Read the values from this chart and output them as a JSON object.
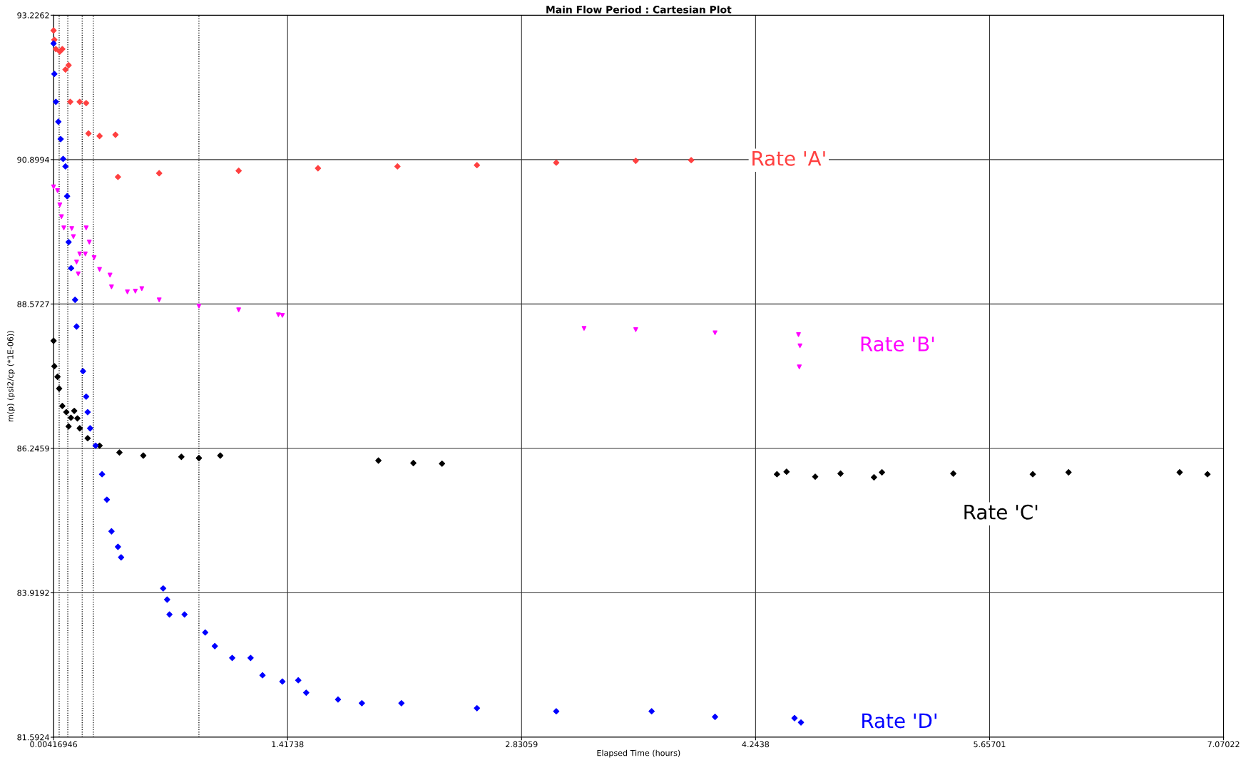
{
  "chart_data": {
    "type": "scatter",
    "title": "Main Flow Period : Cartesian Plot",
    "xlabel": "Elapsed Time (hours)",
    "ylabel": "m(p) (psi2/cp (*1E-06))",
    "xlim": [
      0.00416946,
      7.07022
    ],
    "xticks": [
      0.00416946,
      1.41738,
      2.83059,
      4.2438,
      5.65701,
      7.07022
    ],
    "ylim": [
      81.5924,
      93.2262
    ],
    "yticks": [
      81.5924,
      83.9192,
      86.2459,
      88.5727,
      90.8994,
      93.2262
    ],
    "grid": true,
    "legend": false,
    "ref_lines": [
      {
        "axis": "x",
        "value": 0.038,
        "color": "#000000",
        "line_style": "dotted"
      },
      {
        "axis": "x",
        "value": 0.09,
        "color": "#000000",
        "line_style": "dotted"
      },
      {
        "axis": "x",
        "value": 0.177,
        "color": "#000000",
        "line_style": "dotted"
      },
      {
        "axis": "x",
        "value": 0.244,
        "color": "#000000",
        "line_style": "dotted"
      },
      {
        "axis": "x",
        "value": 0.882,
        "color": "#000000",
        "line_style": "dotted"
      }
    ],
    "series": [
      {
        "name": "Rate 'A'",
        "color": "#ff4040",
        "marker": "diamond",
        "x": [
          0.0042,
          0.009,
          0.018,
          0.042,
          0.057,
          0.076,
          0.095,
          0.105,
          0.162,
          0.201,
          0.215,
          0.282,
          0.378,
          0.393,
          0.642,
          1.122,
          1.601,
          2.081,
          2.561,
          3.04,
          3.52,
          3.855
        ],
        "values": [
          92.98,
          92.83,
          92.68,
          92.64,
          92.68,
          92.35,
          92.42,
          91.83,
          91.83,
          91.81,
          91.32,
          91.28,
          91.3,
          90.62,
          90.68,
          90.72,
          90.76,
          90.79,
          90.81,
          90.85,
          90.88,
          90.89
        ]
      },
      {
        "name": "Rate 'B'",
        "color": "#ff00ff",
        "marker": "triangle",
        "x": [
          0.0042,
          0.028,
          0.042,
          0.052,
          0.066,
          0.114,
          0.124,
          0.143,
          0.153,
          0.162,
          0.196,
          0.201,
          0.22,
          0.249,
          0.282,
          0.345,
          0.354,
          0.45,
          0.498,
          0.537,
          0.642,
          0.882,
          1.122,
          1.362,
          1.386,
          3.208,
          3.52,
          3.999,
          4.503,
          4.512,
          4.508
        ],
        "values": [
          90.46,
          90.4,
          90.17,
          89.98,
          89.8,
          89.79,
          89.66,
          89.25,
          89.06,
          89.38,
          89.38,
          89.8,
          89.57,
          89.32,
          89.13,
          89.04,
          88.85,
          88.77,
          88.78,
          88.82,
          88.64,
          88.54,
          88.48,
          88.4,
          88.39,
          88.18,
          88.16,
          88.11,
          88.08,
          87.9,
          87.56
        ]
      },
      {
        "name": "Rate 'C'",
        "color": "#000000",
        "marker": "diamond",
        "x": [
          0.0042,
          0.009,
          0.028,
          0.038,
          0.057,
          0.081,
          0.095,
          0.109,
          0.129,
          0.148,
          0.162,
          0.21,
          0.282,
          0.402,
          0.546,
          0.776,
          0.882,
          1.011,
          1.966,
          2.177,
          2.35,
          4.373,
          4.431,
          4.604,
          4.757,
          4.959,
          5.007,
          5.438,
          5.918,
          6.134,
          6.805,
          6.973
        ],
        "values": [
          87.98,
          87.57,
          87.4,
          87.21,
          86.93,
          86.83,
          86.6,
          86.74,
          86.85,
          86.73,
          86.57,
          86.41,
          86.29,
          86.18,
          86.13,
          86.11,
          86.09,
          86.13,
          86.05,
          86.01,
          86.0,
          85.83,
          85.87,
          85.79,
          85.84,
          85.78,
          85.86,
          85.84,
          85.83,
          85.86,
          85.86,
          85.83
        ]
      },
      {
        "name": "Rate 'D'",
        "color": "#0000ff",
        "marker": "diamond",
        "x": [
          0.0042,
          0.009,
          0.018,
          0.033,
          0.047,
          0.062,
          0.076,
          0.086,
          0.095,
          0.11,
          0.134,
          0.143,
          0.182,
          0.201,
          0.21,
          0.225,
          0.258,
          0.297,
          0.326,
          0.354,
          0.393,
          0.412,
          0.666,
          0.69,
          0.704,
          0.795,
          0.92,
          0.978,
          1.083,
          1.194,
          1.266,
          1.386,
          1.482,
          1.53,
          1.722,
          1.866,
          2.105,
          2.561,
          3.04,
          3.616,
          3.999,
          4.479,
          4.518
        ],
        "values": [
          92.77,
          92.28,
          91.83,
          91.51,
          91.23,
          90.91,
          90.79,
          90.31,
          89.57,
          89.15,
          88.64,
          88.21,
          87.49,
          87.08,
          86.83,
          86.57,
          86.29,
          85.83,
          85.42,
          84.91,
          84.66,
          84.49,
          83.99,
          83.81,
          83.57,
          83.57,
          83.28,
          83.06,
          82.87,
          82.87,
          82.59,
          82.49,
          82.51,
          82.31,
          82.2,
          82.14,
          82.14,
          82.06,
          82.01,
          82.01,
          81.92,
          81.9,
          81.83
        ]
      }
    ]
  }
}
